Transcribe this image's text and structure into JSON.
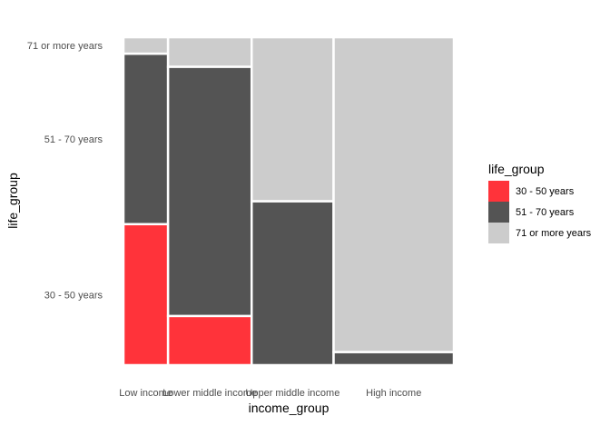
{
  "chart_data": {
    "type": "mosaic",
    "xlabel": "income_group",
    "ylabel": "life_group",
    "categories": [
      "Low income",
      "Lower middle income",
      "Upper middle income",
      "High income"
    ],
    "category_shares": [
      0.135,
      0.253,
      0.248,
      0.364
    ],
    "levels": [
      "30 - 50 years",
      "51 - 70 years",
      "71 or more years"
    ],
    "colors": {
      "30 - 50 years": "#ff333a",
      "51 - 70 years": "#545454",
      "71 or more years": "#cccccc"
    },
    "series": [
      {
        "name": "30 - 50 years",
        "values": [
          0.43,
          0.15,
          0.0,
          0.0
        ]
      },
      {
        "name": "51 - 70 years",
        "values": [
          0.52,
          0.76,
          0.5,
          0.04
        ]
      },
      {
        "name": "71 or more years",
        "values": [
          0.05,
          0.09,
          0.5,
          0.96
        ]
      }
    ],
    "y_tick_labels": [
      "30 - 50 years",
      "51 - 70 years",
      "71 or more years"
    ],
    "legend": {
      "title": "life_group",
      "position": "right",
      "entries": [
        "30 - 50 years",
        "51 - 70 years",
        "71 or more years"
      ]
    },
    "grid": false
  }
}
